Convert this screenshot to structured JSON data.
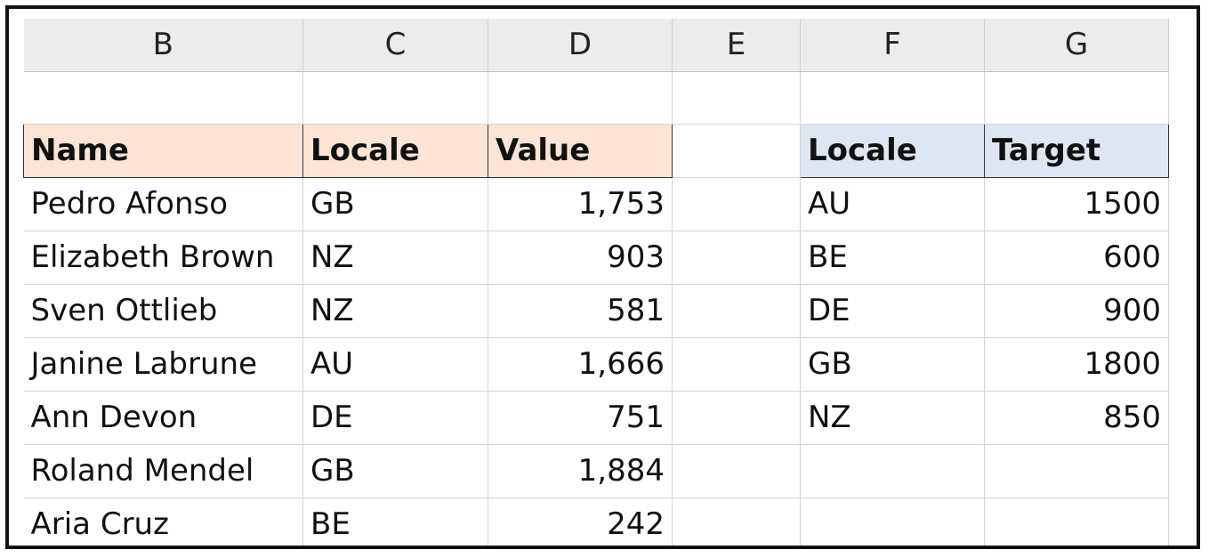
{
  "columns": [
    "B",
    "C",
    "D",
    "E",
    "F",
    "G"
  ],
  "left_table": {
    "headers": {
      "name": "Name",
      "locale": "Locale",
      "value": "Value"
    },
    "header_color": "#fce4d6",
    "rows": [
      {
        "name": "Pedro Afonso",
        "locale": "GB",
        "value": "1,753"
      },
      {
        "name": "Elizabeth Brown",
        "locale": "NZ",
        "value": "903"
      },
      {
        "name": "Sven Ottlieb",
        "locale": "NZ",
        "value": "581"
      },
      {
        "name": "Janine Labrune",
        "locale": "AU",
        "value": "1,666"
      },
      {
        "name": "Ann Devon",
        "locale": "DE",
        "value": "751"
      },
      {
        "name": "Roland Mendel",
        "locale": "GB",
        "value": "1,884"
      },
      {
        "name": "Aria Cruz",
        "locale": "BE",
        "value": "242"
      }
    ]
  },
  "right_table": {
    "headers": {
      "locale": "Locale",
      "target": "Target"
    },
    "header_color": "#dde6f1",
    "rows": [
      {
        "locale": "AU",
        "target": "1500"
      },
      {
        "locale": "BE",
        "target": "600"
      },
      {
        "locale": "DE",
        "target": "900"
      },
      {
        "locale": "GB",
        "target": "1800"
      },
      {
        "locale": "NZ",
        "target": "850"
      }
    ]
  }
}
